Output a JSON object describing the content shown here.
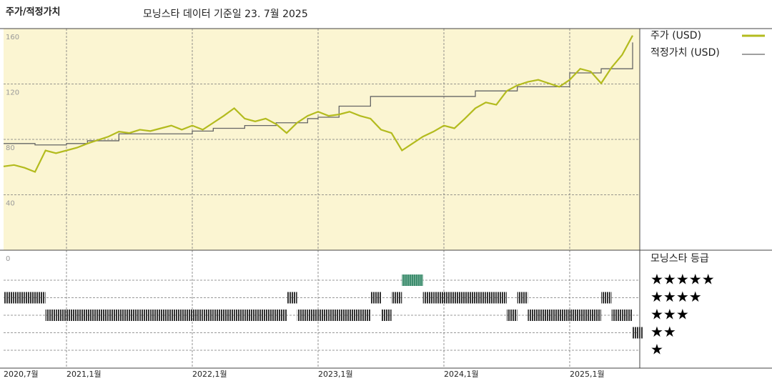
{
  "chart_data": {
    "type": "line",
    "title": "주가/적정가치",
    "subtitle": "모닝스타 데이터 기준일 23. 7월 2025",
    "x": [
      "2020-07",
      "2020-08",
      "2020-09",
      "2020-10",
      "2020-11",
      "2020-12",
      "2021-01",
      "2021-02",
      "2021-03",
      "2021-04",
      "2021-05",
      "2021-06",
      "2021-07",
      "2021-08",
      "2021-09",
      "2021-10",
      "2021-11",
      "2021-12",
      "2022-01",
      "2022-02",
      "2022-03",
      "2022-04",
      "2022-05",
      "2022-06",
      "2022-07",
      "2022-08",
      "2022-09",
      "2022-10",
      "2022-11",
      "2022-12",
      "2023-01",
      "2023-02",
      "2023-03",
      "2023-04",
      "2023-05",
      "2023-06",
      "2023-07",
      "2023-08",
      "2023-09",
      "2023-10",
      "2023-11",
      "2023-12",
      "2024-01",
      "2024-02",
      "2024-03",
      "2024-04",
      "2024-05",
      "2024-06",
      "2024-07",
      "2024-08",
      "2024-09",
      "2024-10",
      "2024-11",
      "2024-12",
      "2025-01",
      "2025-02",
      "2025-03",
      "2025-04",
      "2025-05",
      "2025-06",
      "2025-07"
    ],
    "xlim": [
      "2020-07",
      "2025-07"
    ],
    "xticks": [
      {
        "value": "2020-07",
        "label": "2020,7월"
      },
      {
        "value": "2021-01",
        "label": "2021,1월"
      },
      {
        "value": "2022-01",
        "label": "2022,1월"
      },
      {
        "value": "2023-01",
        "label": "2023,1월"
      },
      {
        "value": "2024-01",
        "label": "2024,1월"
      },
      {
        "value": "2025-01",
        "label": "2025,1월"
      }
    ],
    "ylim": [
      0,
      160
    ],
    "yticks": [
      0,
      40,
      80,
      120,
      160
    ],
    "grid": true,
    "series": [
      {
        "name": "주가 (USD)",
        "color": "#b3bb1e",
        "values": [
          60.5,
          61.5,
          59.5,
          56.5,
          72,
          70,
          72,
          74,
          77,
          79.5,
          82,
          85.6,
          84.6,
          87,
          86,
          88,
          90,
          87,
          90,
          87,
          92,
          97,
          102.5,
          95,
          93,
          95,
          91,
          84.6,
          92,
          97,
          100,
          97,
          98,
          100,
          97,
          95,
          87,
          84.6,
          72,
          77,
          82,
          85.6,
          90,
          88,
          95,
          102.5,
          106.7,
          105,
          115,
          119,
          121.5,
          123,
          120.5,
          118,
          123,
          131,
          129,
          120.5,
          132,
          141,
          155
        ]
      },
      {
        "name": "적정가치 (USD)",
        "color": "#666666",
        "step": true,
        "values": [
          77,
          77,
          77,
          76,
          76,
          76,
          77,
          77,
          79,
          79,
          79,
          84,
          84,
          84,
          84,
          84,
          84,
          84,
          86,
          86,
          88,
          88,
          88,
          90,
          90,
          90,
          92,
          92,
          92,
          95,
          96,
          96,
          104,
          104,
          104,
          111,
          111,
          111,
          111,
          111,
          111,
          111,
          111,
          111,
          111,
          115,
          115,
          115,
          115,
          118,
          118,
          118,
          118,
          118,
          128,
          128,
          128,
          131,
          131,
          131,
          150
        ]
      }
    ],
    "ratings": {
      "title": "모닝스타 등급",
      "color": "#333333",
      "top_color": "#3d8c6e",
      "values": [
        4,
        4,
        4,
        4,
        3,
        3,
        3,
        3,
        3,
        3,
        3,
        3,
        3,
        3,
        3,
        3,
        3,
        3,
        3,
        3,
        3,
        3,
        3,
        3,
        3,
        3,
        3,
        4,
        3,
        3,
        3,
        3,
        3,
        3,
        3,
        4,
        3,
        4,
        5,
        5,
        4,
        4,
        4,
        4,
        4,
        4,
        4,
        4,
        3,
        4,
        3,
        3,
        3,
        3,
        3,
        3,
        3,
        4,
        3,
        3,
        2
      ],
      "levels": [
        {
          "value": 5,
          "label": "★★★★★"
        },
        {
          "value": 4,
          "label": "★★★★"
        },
        {
          "value": 3,
          "label": "★★★"
        },
        {
          "value": 2,
          "label": "★★"
        },
        {
          "value": 1,
          "label": "★"
        }
      ]
    }
  }
}
